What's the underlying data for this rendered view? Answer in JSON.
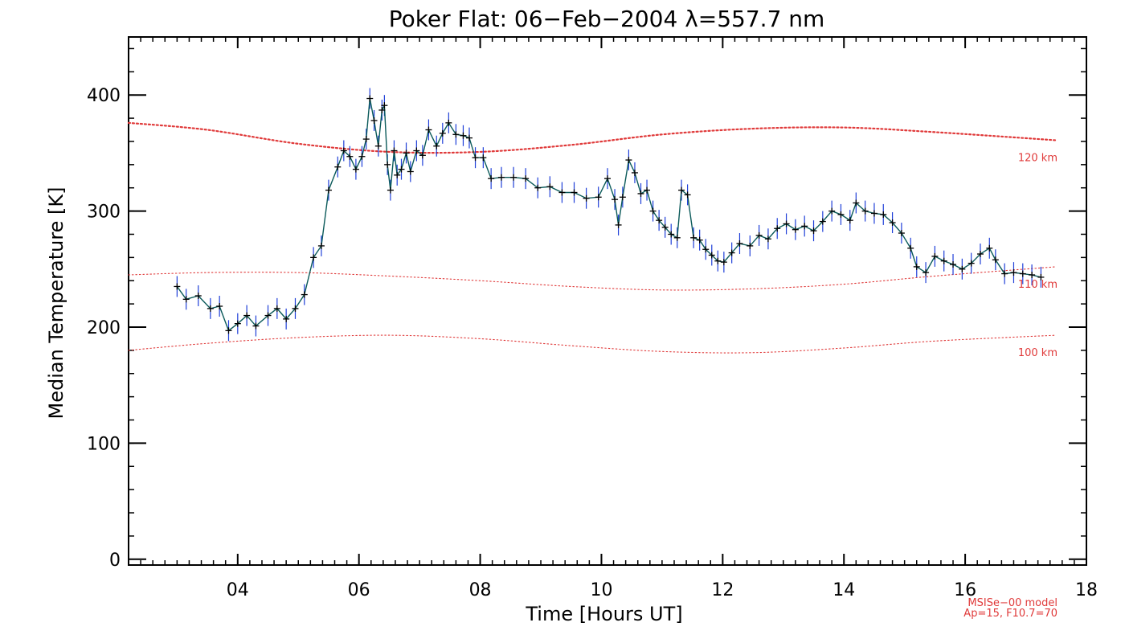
{
  "colors": {
    "data_line": "#0b5a5a",
    "error_bar": "#1f3fd8",
    "marker": "#000000",
    "model_line": "#e03a3a",
    "axis": "#000000",
    "background": "#ffffff"
  },
  "chart_data": {
    "type": "line",
    "title": "Poker Flat: 06−Feb−2004 λ=557.7 nm",
    "xlabel": "Time [Hours UT]",
    "ylabel": "Median Temperature [K]",
    "xlim": [
      2.2,
      18
    ],
    "ylim": [
      -5,
      450
    ],
    "x_ticks": [
      4,
      6,
      8,
      10,
      12,
      14,
      16,
      18
    ],
    "x_tick_labels": [
      "04",
      "06",
      "08",
      "10",
      "12",
      "14",
      "16",
      "18"
    ],
    "y_ticks": [
      0,
      100,
      200,
      300,
      400
    ],
    "y_tick_labels": [
      "0",
      "100",
      "200",
      "300",
      "400"
    ],
    "grid": false,
    "footnote": [
      "MSISe−00 model",
      "Ap=15, F10.7=70"
    ],
    "series": [
      {
        "label_visible": false,
        "style": "line-with-markers-and-errorbars",
        "errorbar": 9,
        "points": [
          [
            3.0,
            235
          ],
          [
            3.15,
            224
          ],
          [
            3.35,
            227
          ],
          [
            3.55,
            216
          ],
          [
            3.7,
            218
          ],
          [
            3.85,
            197
          ],
          [
            4.0,
            203
          ],
          [
            4.15,
            210
          ],
          [
            4.3,
            201
          ],
          [
            4.5,
            210
          ],
          [
            4.65,
            216
          ],
          [
            4.8,
            207
          ],
          [
            4.95,
            216
          ],
          [
            5.1,
            228
          ],
          [
            5.25,
            260
          ],
          [
            5.38,
            270
          ],
          [
            5.5,
            318
          ],
          [
            5.65,
            338
          ],
          [
            5.75,
            352
          ],
          [
            5.85,
            347
          ],
          [
            5.95,
            336
          ],
          [
            6.05,
            347
          ],
          [
            6.12,
            362
          ],
          [
            6.18,
            397
          ],
          [
            6.25,
            378
          ],
          [
            6.32,
            356
          ],
          [
            6.38,
            387
          ],
          [
            6.42,
            391
          ],
          [
            6.47,
            340
          ],
          [
            6.52,
            318
          ],
          [
            6.58,
            352
          ],
          [
            6.63,
            331
          ],
          [
            6.7,
            336
          ],
          [
            6.78,
            350
          ],
          [
            6.85,
            334
          ],
          [
            6.95,
            352
          ],
          [
            7.05,
            348
          ],
          [
            7.15,
            370
          ],
          [
            7.28,
            356
          ],
          [
            7.38,
            367
          ],
          [
            7.48,
            376
          ],
          [
            7.6,
            366
          ],
          [
            7.72,
            365
          ],
          [
            7.82,
            363
          ],
          [
            7.92,
            346
          ],
          [
            8.05,
            346
          ],
          [
            8.18,
            328
          ],
          [
            8.35,
            329
          ],
          [
            8.55,
            329
          ],
          [
            8.75,
            328
          ],
          [
            8.95,
            320
          ],
          [
            9.15,
            321
          ],
          [
            9.35,
            316
          ],
          [
            9.55,
            316
          ],
          [
            9.75,
            311
          ],
          [
            9.95,
            312
          ],
          [
            10.1,
            328
          ],
          [
            10.22,
            310
          ],
          [
            10.28,
            288
          ],
          [
            10.35,
            312
          ],
          [
            10.45,
            344
          ],
          [
            10.55,
            333
          ],
          [
            10.65,
            315
          ],
          [
            10.75,
            318
          ],
          [
            10.85,
            300
          ],
          [
            10.95,
            292
          ],
          [
            11.05,
            286
          ],
          [
            11.15,
            280
          ],
          [
            11.25,
            277
          ],
          [
            11.32,
            318
          ],
          [
            11.42,
            314
          ],
          [
            11.52,
            277
          ],
          [
            11.62,
            275
          ],
          [
            11.72,
            267
          ],
          [
            11.82,
            262
          ],
          [
            11.92,
            257
          ],
          [
            12.02,
            256
          ],
          [
            12.15,
            264
          ],
          [
            12.28,
            272
          ],
          [
            12.45,
            270
          ],
          [
            12.6,
            279
          ],
          [
            12.75,
            276
          ],
          [
            12.9,
            285
          ],
          [
            13.05,
            289
          ],
          [
            13.2,
            284
          ],
          [
            13.35,
            287
          ],
          [
            13.5,
            283
          ],
          [
            13.65,
            291
          ],
          [
            13.8,
            300
          ],
          [
            13.95,
            297
          ],
          [
            14.1,
            292
          ],
          [
            14.2,
            307
          ],
          [
            14.35,
            300
          ],
          [
            14.5,
            298
          ],
          [
            14.65,
            297
          ],
          [
            14.8,
            290
          ],
          [
            14.95,
            281
          ],
          [
            15.1,
            268
          ],
          [
            15.2,
            252
          ],
          [
            15.35,
            247
          ],
          [
            15.5,
            261
          ],
          [
            15.65,
            257
          ],
          [
            15.8,
            254
          ],
          [
            15.95,
            250
          ],
          [
            16.1,
            255
          ],
          [
            16.25,
            263
          ],
          [
            16.4,
            268
          ],
          [
            16.5,
            258
          ],
          [
            16.65,
            246
          ],
          [
            16.8,
            247
          ],
          [
            16.95,
            246
          ],
          [
            17.1,
            245
          ],
          [
            17.25,
            243
          ]
        ]
      },
      {
        "name": "120 km",
        "style": "model-dotted-heavy",
        "points": [
          [
            2.2,
            376
          ],
          [
            3.5,
            370
          ],
          [
            5,
            358
          ],
          [
            6.5,
            351
          ],
          [
            8,
            351
          ],
          [
            9.5,
            357
          ],
          [
            11,
            366
          ],
          [
            12.5,
            371
          ],
          [
            14,
            372
          ],
          [
            15.5,
            368
          ],
          [
            17.5,
            361
          ]
        ]
      },
      {
        "name": "110 km",
        "style": "model-dotted",
        "points": [
          [
            2.2,
            245
          ],
          [
            3.5,
            247
          ],
          [
            5,
            247
          ],
          [
            6.5,
            244
          ],
          [
            8,
            240
          ],
          [
            9.5,
            235
          ],
          [
            11,
            232
          ],
          [
            12.5,
            233
          ],
          [
            14,
            237
          ],
          [
            15.5,
            244
          ],
          [
            17.5,
            252
          ]
        ]
      },
      {
        "name": "100 km",
        "style": "model-dotted",
        "points": [
          [
            2.2,
            180
          ],
          [
            3.5,
            186
          ],
          [
            5,
            191
          ],
          [
            6.5,
            193
          ],
          [
            8,
            190
          ],
          [
            9.5,
            184
          ],
          [
            11,
            179
          ],
          [
            12.5,
            178
          ],
          [
            14,
            182
          ],
          [
            15.5,
            188
          ],
          [
            17.5,
            193
          ]
        ]
      }
    ]
  }
}
